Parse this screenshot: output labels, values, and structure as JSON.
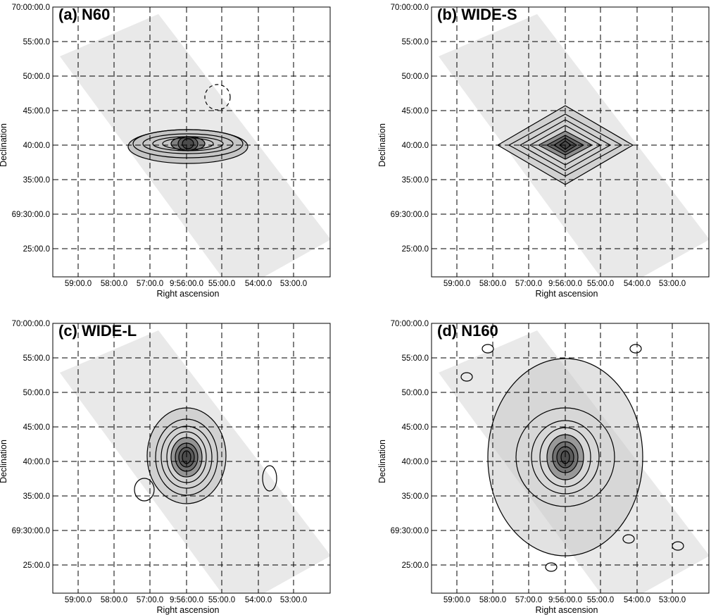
{
  "chart_data": [
    {
      "type": "heatmap",
      "title": "(a) N60",
      "xlabel": "Right ascension",
      "ylabel": "Declination",
      "x_ticks": [
        "59:00.0",
        "58:00.0",
        "57:00.0",
        "9:56:00.0",
        "55:00.0",
        "54:00.0",
        "53:00.0"
      ],
      "y_ticks": [
        "70:00:00.0",
        "55:00.0",
        "50:00.0",
        "45:00.0",
        "40:00.0",
        "35:00.0",
        "69:30:00.0",
        "25:00.0"
      ],
      "grid": true,
      "image": "greyscale",
      "overlay": "contours",
      "contour_shape": "elongated"
    },
    {
      "type": "heatmap",
      "title": "(b) WIDE-S",
      "xlabel": "Right ascension",
      "ylabel": "Declination",
      "x_ticks": [
        "59:00.0",
        "58:00.0",
        "57:00.0",
        "9:56:00.0",
        "55:00.0",
        "54:00.0",
        "53:00.0"
      ],
      "y_ticks": [
        "70:00:00.0",
        "55:00.0",
        "50:00.0",
        "45:00.0",
        "40:00.0",
        "35:00.0",
        "69:30:00.0",
        "25:00.0"
      ],
      "grid": true,
      "image": "greyscale",
      "overlay": "contours",
      "contour_shape": "diamond"
    },
    {
      "type": "heatmap",
      "title": "(c) WIDE-L",
      "xlabel": "Right ascension",
      "ylabel": "Declination",
      "x_ticks": [
        "59:00.0",
        "58:00.0",
        "57:00.0",
        "9:56:00.0",
        "55:00.0",
        "54:00.0",
        "53:00.0"
      ],
      "y_ticks": [
        "70:00:00.0",
        "55:00.0",
        "50:00.0",
        "45:00.0",
        "40:00.0",
        "35:00.0",
        "69:30:00.0",
        "25:00.0"
      ],
      "grid": true,
      "image": "greyscale",
      "overlay": "contours",
      "contour_shape": "rounded"
    },
    {
      "type": "heatmap",
      "title": "(d) N160",
      "xlabel": "Right ascension",
      "ylabel": "Declination",
      "x_ticks": [
        "59:00.0",
        "58:00.0",
        "57:00.0",
        "9:56:00.0",
        "55:00.0",
        "54:00.0",
        "53:00.0"
      ],
      "y_ticks": [
        "70:00:00.0",
        "55:00.0",
        "50:00.0",
        "45:00.0",
        "40:00.0",
        "35:00.0",
        "69:30:00.0",
        "25:00.0"
      ],
      "grid": true,
      "image": "greyscale",
      "overlay": "contours",
      "contour_shape": "extended"
    }
  ],
  "colors": {
    "background": "#ffffff",
    "map_light": "#e9e9e9",
    "map_mid": "#c6c6c6",
    "core_dark": "#3a3a3a",
    "contour": "#000000",
    "grid": "#000000"
  }
}
